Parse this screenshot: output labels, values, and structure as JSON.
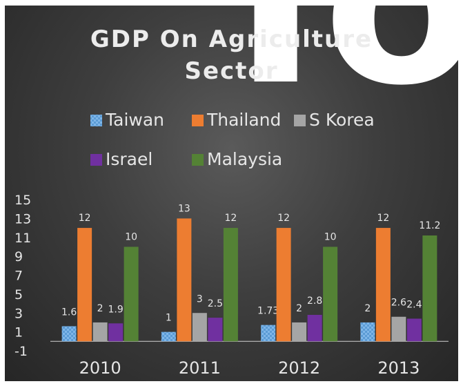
{
  "chart_data": {
    "type": "bar",
    "title": "GDP On Agriculture Sector",
    "title_lines": [
      "GDP On Agriculture",
      "Sector"
    ],
    "categories": [
      "2010",
      "2011",
      "2012",
      "2013"
    ],
    "series": [
      {
        "name": "Taiwan",
        "values": [
          1.6,
          1,
          1.73,
          2
        ],
        "labels": [
          "1.6",
          "1",
          "1.73",
          "2"
        ],
        "color": "#5b9bd5",
        "pattern": "checker"
      },
      {
        "name": "Thailand",
        "values": [
          12,
          13,
          12,
          12
        ],
        "labels": [
          "12",
          "13",
          "12",
          "12"
        ],
        "color": "#ed7d31"
      },
      {
        "name": "S Korea",
        "values": [
          2,
          3,
          2,
          2.6
        ],
        "labels": [
          "2",
          "3",
          "2",
          "2.6"
        ],
        "color": "#a5a5a5"
      },
      {
        "name": "Israel",
        "values": [
          1.9,
          2.5,
          2.8,
          2.4
        ],
        "labels": [
          "1.9",
          "2.5",
          "2.8",
          "2.4"
        ],
        "color": "#7030a0"
      },
      {
        "name": "Malaysia",
        "values": [
          10,
          12,
          10,
          11.2
        ],
        "labels": [
          "10",
          "12",
          "10",
          "11.2"
        ],
        "color": "#548235"
      }
    ],
    "y_ticks": [
      "15",
      "13",
      "11",
      "9",
      "7",
      "5",
      "3",
      "1",
      "-1"
    ],
    "ylim": [
      -1,
      15
    ],
    "xlabel": "",
    "ylabel": "",
    "grid": false,
    "legend_position": "top",
    "background": "#3c3c3c",
    "text_color": "#e6e6e6"
  }
}
